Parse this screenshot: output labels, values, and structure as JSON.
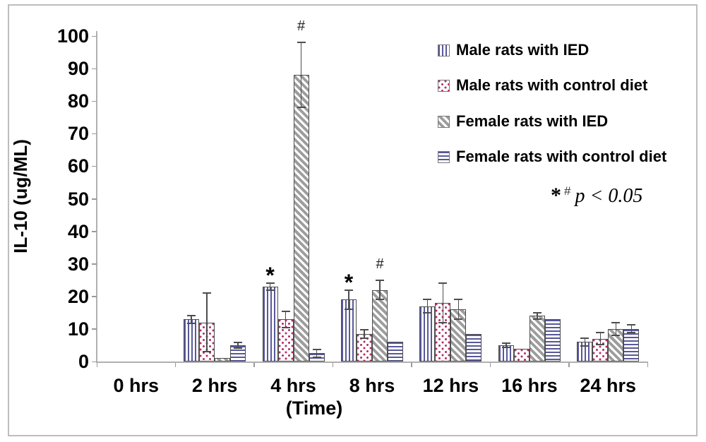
{
  "chart_data": {
    "type": "bar",
    "title": "",
    "xlabel": "(Time)",
    "ylabel": "IL-10 (ug/ML)",
    "ylim": [
      0,
      100
    ],
    "ytick_step": 10,
    "grid": false,
    "legend_position": "top-right",
    "categories": [
      "0 hrs",
      "2 hrs",
      "4 hrs",
      "8 hrs",
      "12 hrs",
      "16 hrs",
      "24 hrs"
    ],
    "series": [
      {
        "name": "Male rats with IED",
        "pattern": "vertical-stripes",
        "color": "#585899",
        "values": [
          0,
          13,
          23,
          19,
          17,
          5,
          6
        ],
        "errors": [
          0,
          1.2,
          1,
          3,
          2,
          0.7,
          1.2
        ]
      },
      {
        "name": "Male rats with control diet",
        "pattern": "dots",
        "color": "#b23067",
        "values": [
          0,
          12,
          13,
          8.5,
          18,
          4,
          7
        ],
        "errors": [
          0,
          9,
          2.5,
          1.3,
          6,
          0,
          1.8
        ]
      },
      {
        "name": "Female rats with IED",
        "pattern": "diagonal-stripes",
        "color": "#9d9d9d",
        "values": [
          0,
          1,
          88,
          22,
          16,
          14,
          10
        ],
        "errors": [
          0,
          0,
          10,
          3,
          3,
          1,
          2
        ]
      },
      {
        "name": "Female rats with control diet",
        "pattern": "horizontal-stripes",
        "color": "#585899",
        "values": [
          0,
          5,
          2.5,
          6,
          8.5,
          13,
          10
        ],
        "errors": [
          0,
          0.8,
          1.2,
          0,
          0,
          0,
          1.2
        ]
      }
    ],
    "annotations": [
      {
        "symbol": "*",
        "category": "4 hrs",
        "series": "Male rats with IED"
      },
      {
        "symbol": "#",
        "category": "4 hrs",
        "series": "Female rats with IED"
      },
      {
        "symbol": "*",
        "category": "8 hrs",
        "series": "Male rats with IED"
      },
      {
        "symbol": "#",
        "category": "8 hrs",
        "series": "Female rats with IED"
      }
    ],
    "significance_note": {
      "star": "*",
      "hash": "#",
      "text": "p < 0.05"
    }
  }
}
